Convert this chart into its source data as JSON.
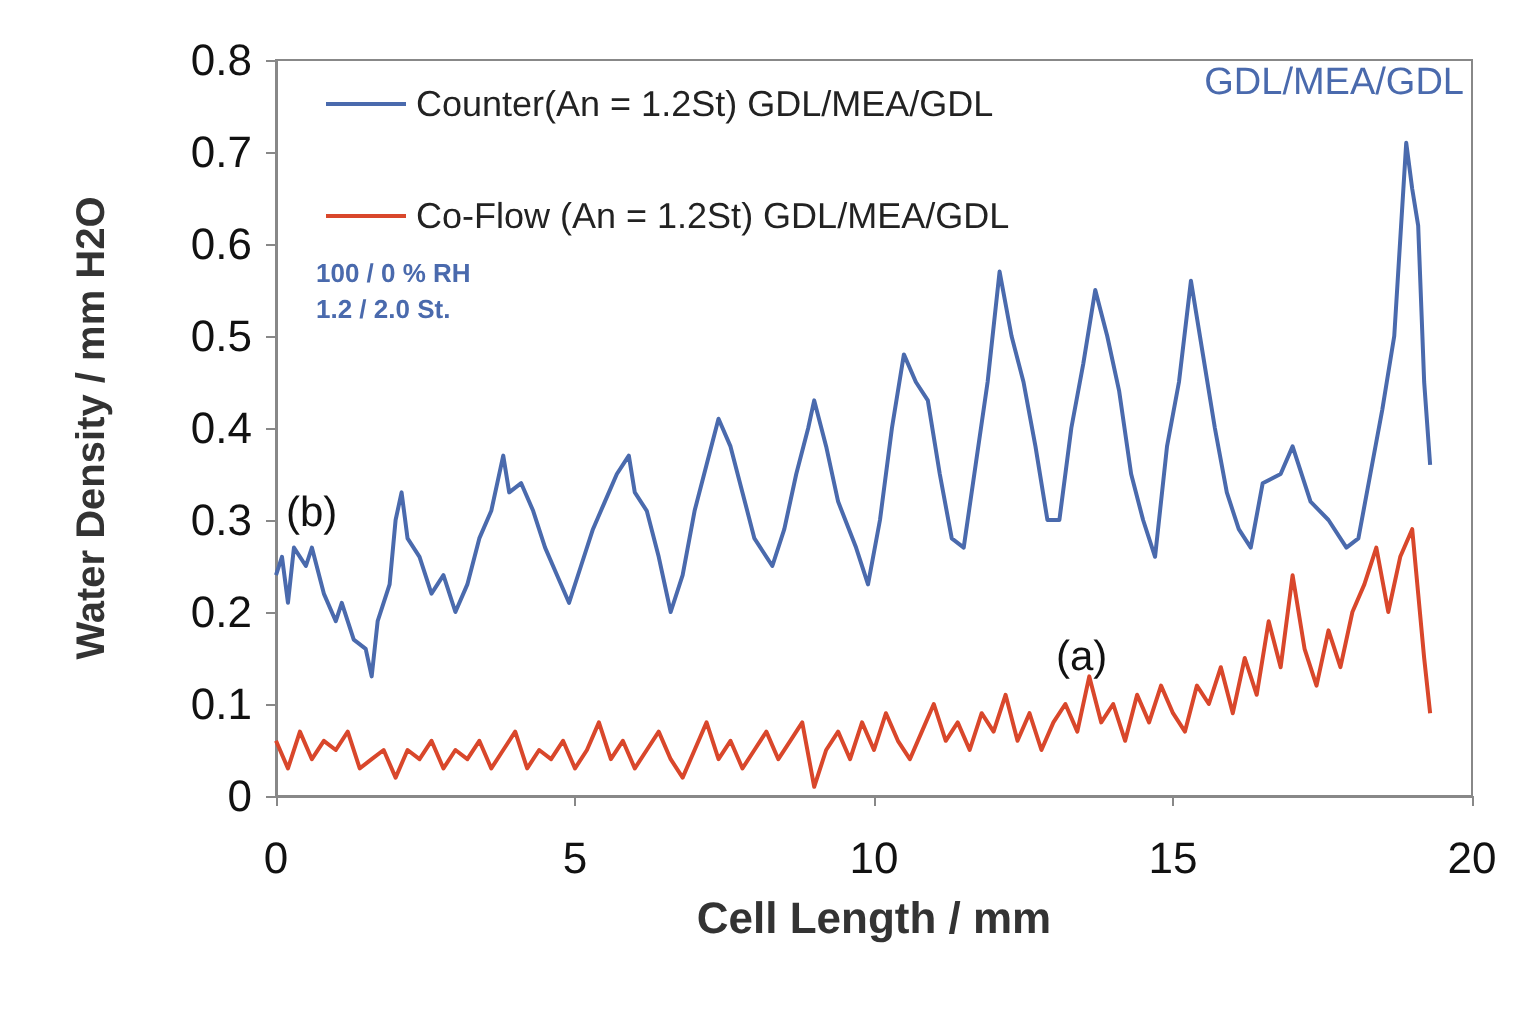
{
  "chart_data": {
    "type": "line",
    "xlabel": "Cell Length / mm",
    "ylabel": "Water Density / mm H2O",
    "xlim": [
      0,
      20
    ],
    "xticks": [
      0,
      5,
      10,
      15,
      20
    ],
    "ylim": [
      0,
      0.8
    ],
    "yticks": [
      0,
      0.1,
      0.2,
      0.3,
      0.4,
      0.5,
      0.6,
      0.7,
      0.8
    ],
    "grid": false,
    "legend": "top left",
    "marker": "none",
    "line_style": "solid",
    "annotations": [
      "GDL/MEA/GDL",
      "100 / 0 % RH",
      "1.2 / 2.0 St.",
      "(b)",
      "(a)"
    ],
    "series": [
      {
        "name": "Counter(An = 1.2St) GDL/MEA/GDL",
        "color": "#4a6aad",
        "x": [
          0,
          0.1,
          0.2,
          0.3,
          0.5,
          0.6,
          0.8,
          1.0,
          1.1,
          1.3,
          1.5,
          1.6,
          1.7,
          1.9,
          2.0,
          2.1,
          2.2,
          2.4,
          2.6,
          2.8,
          3.0,
          3.2,
          3.4,
          3.6,
          3.8,
          3.9,
          4.1,
          4.3,
          4.5,
          4.7,
          4.9,
          5.1,
          5.3,
          5.5,
          5.7,
          5.9,
          6.0,
          6.2,
          6.4,
          6.6,
          6.8,
          7.0,
          7.2,
          7.4,
          7.6,
          7.8,
          8.0,
          8.3,
          8.5,
          8.7,
          8.9,
          9.0,
          9.2,
          9.4,
          9.7,
          9.9,
          10.1,
          10.3,
          10.5,
          10.7,
          10.9,
          11.1,
          11.3,
          11.5,
          11.7,
          11.9,
          12.1,
          12.3,
          12.5,
          12.7,
          12.9,
          13.1,
          13.3,
          13.5,
          13.7,
          13.9,
          14.1,
          14.3,
          14.5,
          14.7,
          14.9,
          15.1,
          15.3,
          15.5,
          15.7,
          15.9,
          16.1,
          16.3,
          16.5,
          16.8,
          17.0,
          17.3,
          17.6,
          17.9,
          18.1,
          18.3,
          18.5,
          18.7,
          18.9,
          19.0,
          19.1,
          19.2,
          19.3
        ],
        "values": [
          0.24,
          0.26,
          0.21,
          0.27,
          0.25,
          0.27,
          0.22,
          0.19,
          0.21,
          0.17,
          0.16,
          0.13,
          0.19,
          0.23,
          0.3,
          0.33,
          0.28,
          0.26,
          0.22,
          0.24,
          0.2,
          0.23,
          0.28,
          0.31,
          0.37,
          0.33,
          0.34,
          0.31,
          0.27,
          0.24,
          0.21,
          0.25,
          0.29,
          0.32,
          0.35,
          0.37,
          0.33,
          0.31,
          0.26,
          0.2,
          0.24,
          0.31,
          0.36,
          0.41,
          0.38,
          0.33,
          0.28,
          0.25,
          0.29,
          0.35,
          0.4,
          0.43,
          0.38,
          0.32,
          0.27,
          0.23,
          0.3,
          0.4,
          0.48,
          0.45,
          0.43,
          0.35,
          0.28,
          0.27,
          0.36,
          0.45,
          0.57,
          0.5,
          0.45,
          0.38,
          0.3,
          0.3,
          0.4,
          0.47,
          0.55,
          0.5,
          0.44,
          0.35,
          0.3,
          0.26,
          0.38,
          0.45,
          0.56,
          0.48,
          0.4,
          0.33,
          0.29,
          0.27,
          0.34,
          0.35,
          0.38,
          0.32,
          0.3,
          0.27,
          0.28,
          0.35,
          0.42,
          0.5,
          0.71,
          0.66,
          0.62,
          0.45,
          0.36
        ]
      },
      {
        "name": "Co-Flow (An = 1.2St) GDL/MEA/GDL",
        "color": "#d9472b",
        "x": [
          0,
          0.2,
          0.4,
          0.6,
          0.8,
          1.0,
          1.2,
          1.4,
          1.6,
          1.8,
          2.0,
          2.2,
          2.4,
          2.6,
          2.8,
          3.0,
          3.2,
          3.4,
          3.6,
          3.8,
          4.0,
          4.2,
          4.4,
          4.6,
          4.8,
          5.0,
          5.2,
          5.4,
          5.6,
          5.8,
          6.0,
          6.2,
          6.4,
          6.6,
          6.8,
          7.0,
          7.2,
          7.4,
          7.6,
          7.8,
          8.0,
          8.2,
          8.4,
          8.6,
          8.8,
          9.0,
          9.2,
          9.4,
          9.6,
          9.8,
          10.0,
          10.2,
          10.4,
          10.6,
          10.8,
          11.0,
          11.2,
          11.4,
          11.6,
          11.8,
          12.0,
          12.2,
          12.4,
          12.6,
          12.8,
          13.0,
          13.2,
          13.4,
          13.6,
          13.8,
          14.0,
          14.2,
          14.4,
          14.6,
          14.8,
          15.0,
          15.2,
          15.4,
          15.6,
          15.8,
          16.0,
          16.2,
          16.4,
          16.6,
          16.8,
          17.0,
          17.2,
          17.4,
          17.6,
          17.8,
          18.0,
          18.2,
          18.4,
          18.6,
          18.8,
          19.0,
          19.1,
          19.2,
          19.3
        ],
        "values": [
          0.06,
          0.03,
          0.07,
          0.04,
          0.06,
          0.05,
          0.07,
          0.03,
          0.04,
          0.05,
          0.02,
          0.05,
          0.04,
          0.06,
          0.03,
          0.05,
          0.04,
          0.06,
          0.03,
          0.05,
          0.07,
          0.03,
          0.05,
          0.04,
          0.06,
          0.03,
          0.05,
          0.08,
          0.04,
          0.06,
          0.03,
          0.05,
          0.07,
          0.04,
          0.02,
          0.05,
          0.08,
          0.04,
          0.06,
          0.03,
          0.05,
          0.07,
          0.04,
          0.06,
          0.08,
          0.01,
          0.05,
          0.07,
          0.04,
          0.08,
          0.05,
          0.09,
          0.06,
          0.04,
          0.07,
          0.1,
          0.06,
          0.08,
          0.05,
          0.09,
          0.07,
          0.11,
          0.06,
          0.09,
          0.05,
          0.08,
          0.1,
          0.07,
          0.13,
          0.08,
          0.1,
          0.06,
          0.11,
          0.08,
          0.12,
          0.09,
          0.07,
          0.12,
          0.1,
          0.14,
          0.09,
          0.15,
          0.11,
          0.19,
          0.14,
          0.24,
          0.16,
          0.12,
          0.18,
          0.14,
          0.2,
          0.23,
          0.27,
          0.2,
          0.26,
          0.29,
          0.22,
          0.15,
          0.09
        ]
      }
    ]
  }
}
